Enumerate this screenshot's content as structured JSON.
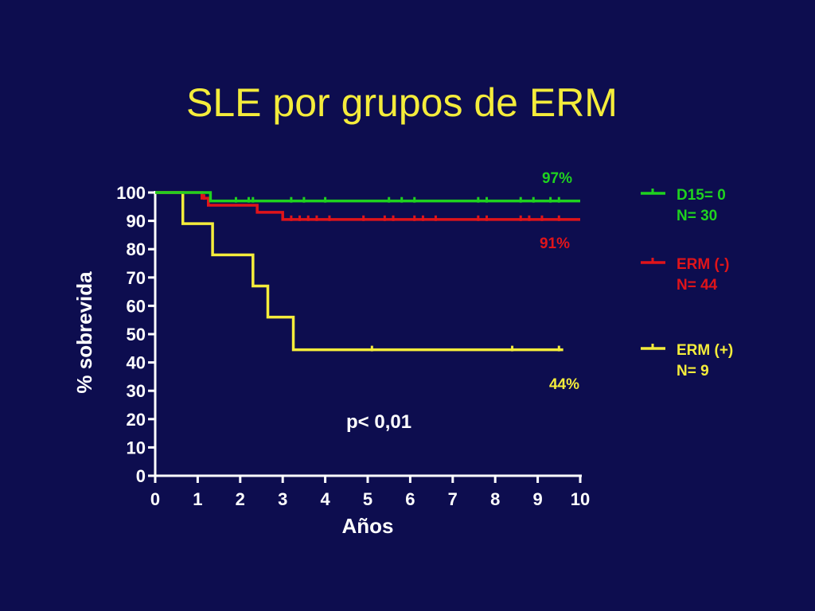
{
  "title": "SLE por grupos de ERM",
  "colors": {
    "background": "#0d0d4f",
    "title": "#f4ec3b",
    "axis": "#ffffff",
    "green": "#1fd21f",
    "red": "#e0141a",
    "yellow": "#f4ec3b"
  },
  "chart_data": {
    "type": "line",
    "title": "SLE por grupos de ERM",
    "xlabel": "Años",
    "ylabel": "% sobrevida",
    "xlim": [
      0,
      10
    ],
    "ylim": [
      0,
      100
    ],
    "xticks": [
      "0",
      "1",
      "2",
      "3",
      "4",
      "5",
      "6",
      "7",
      "8",
      "9",
      "10"
    ],
    "yticks": [
      "0",
      "10",
      "20",
      "30",
      "40",
      "50",
      "60",
      "70",
      "80",
      "90",
      "100"
    ],
    "grid": false,
    "legend_position": "right",
    "annotation": "p< 0,01",
    "series": [
      {
        "name": "D15= 0",
        "legend_lines": [
          "D15= 0",
          "N= 30"
        ],
        "color": "#1fd21f",
        "end_label": "97%",
        "steps": [
          [
            0,
            100
          ],
          [
            1.3,
            97
          ],
          [
            10,
            97
          ]
        ],
        "censored": [
          1.9,
          2.2,
          2.3,
          3.2,
          3.5,
          4.0,
          5.5,
          5.8,
          6.1,
          7.6,
          7.8,
          8.6,
          8.9,
          9.3,
          9.5
        ]
      },
      {
        "name": "ERM (-)",
        "legend_lines": [
          "ERM (-)",
          "N= 44"
        ],
        "color": "#e0141a",
        "end_label": "91%",
        "steps": [
          [
            0,
            100
          ],
          [
            1.1,
            98
          ],
          [
            1.25,
            95.5
          ],
          [
            2.4,
            93
          ],
          [
            3.0,
            90.5
          ],
          [
            10,
            90.5
          ]
        ],
        "censored": [
          1.15,
          3.2,
          3.4,
          3.6,
          3.8,
          4.1,
          4.9,
          5.4,
          5.6,
          6.1,
          6.3,
          6.6,
          7.6,
          7.8,
          8.6,
          8.8,
          9.1,
          9.5
        ]
      },
      {
        "name": "ERM (+)",
        "legend_lines": [
          "ERM (+)",
          "N= 9"
        ],
        "color": "#f4ec3b",
        "end_label": "44%",
        "steps": [
          [
            0,
            100
          ],
          [
            0.65,
            89
          ],
          [
            1.35,
            78
          ],
          [
            2.3,
            67
          ],
          [
            2.65,
            56
          ],
          [
            3.25,
            44.5
          ],
          [
            9.6,
            44.5
          ]
        ],
        "censored": [
          5.1,
          8.4,
          9.5
        ]
      }
    ]
  }
}
